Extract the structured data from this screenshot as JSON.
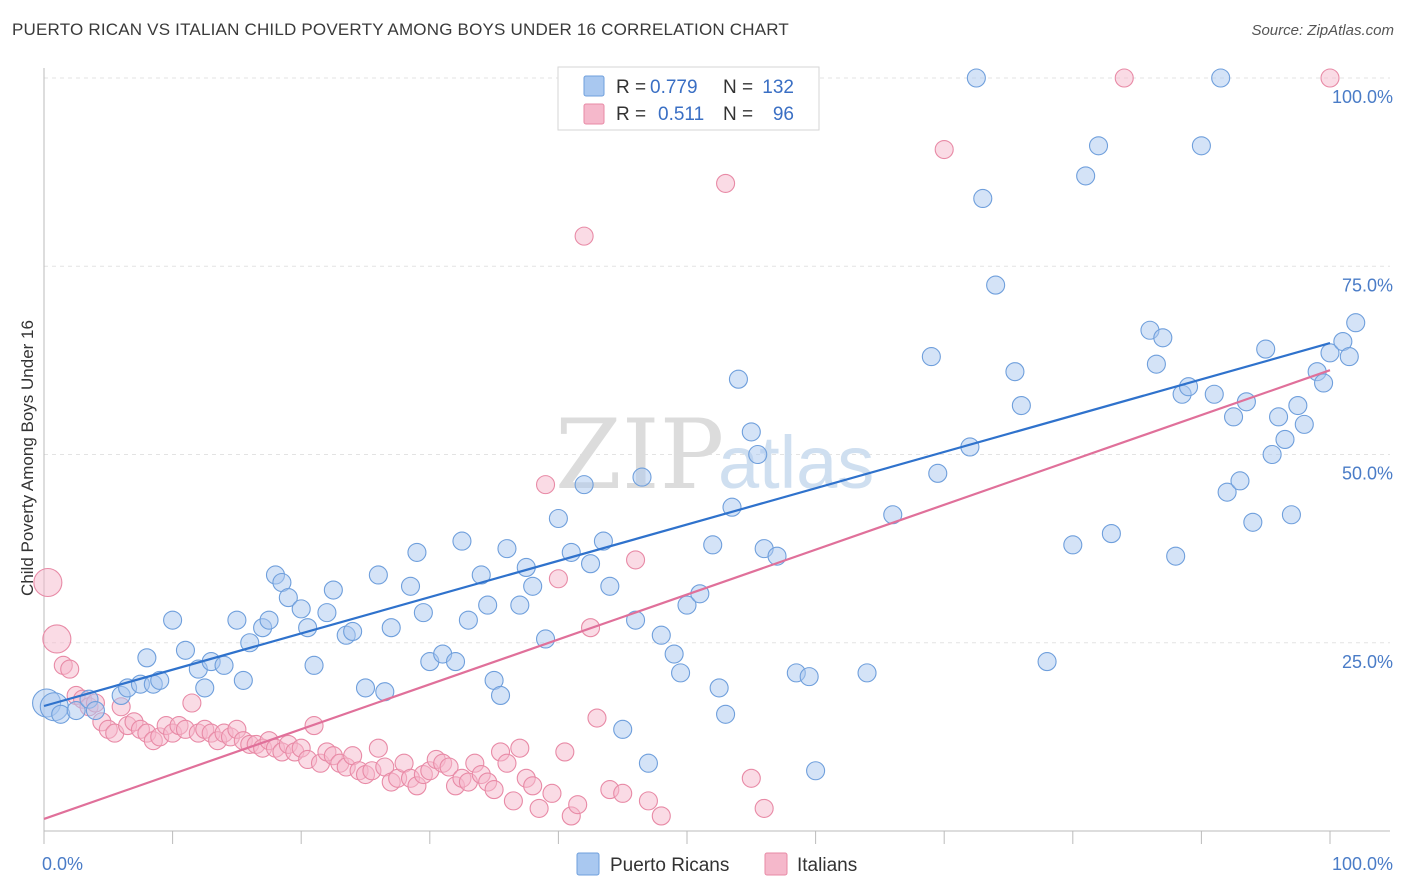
{
  "title": "PUERTO RICAN VS ITALIAN CHILD POVERTY AMONG BOYS UNDER 16 CORRELATION CHART",
  "source": "Source: ZipAtlas.com",
  "watermark": {
    "zip": "ZIP",
    "atlas": "atlas"
  },
  "legend_box": {
    "rows": [
      {
        "r_label": "R =",
        "r_value": "0.779",
        "n_label": "N =",
        "n_value": "132",
        "color": "#a9c8f0"
      },
      {
        "r_label": "R =",
        "r_value": "0.511",
        "n_label": "N =",
        "n_value": "96",
        "color": "#f5b8cb"
      }
    ]
  },
  "bottom_legend": [
    "Puerto Ricans",
    "Italians"
  ],
  "chart_data": {
    "type": "scatter",
    "title": "PUERTO RICAN VS ITALIAN CHILD POVERTY AMONG BOYS UNDER 16 CORRELATION CHART",
    "xlabel": "",
    "ylabel": "Child Poverty Among Boys Under 16",
    "xlim": [
      0,
      100
    ],
    "ylim": [
      0,
      100
    ],
    "x_tick_labels": [
      "0.0%",
      "100.0%"
    ],
    "y_tick_labels": [
      "25.0%",
      "50.0%",
      "75.0%",
      "100.0%"
    ],
    "y_ticks": [
      25,
      50,
      75,
      100
    ],
    "grid": true,
    "legend": "top-center",
    "series": [
      {
        "name": "Puerto Ricans",
        "color": "#a9c8f0",
        "edge": "#6f9fdc",
        "line_color": "#2f72cc",
        "trend": [
          [
            0,
            16.6
          ],
          [
            100,
            64.8
          ]
        ],
        "points": [
          [
            0.2,
            17
          ],
          [
            0.8,
            16.5
          ],
          [
            1.3,
            15.5
          ],
          [
            2.5,
            16
          ],
          [
            3.5,
            17.5
          ],
          [
            4,
            16
          ],
          [
            6,
            18
          ],
          [
            6.5,
            19
          ],
          [
            7.5,
            19.5
          ],
          [
            8,
            23
          ],
          [
            8.5,
            19.5
          ],
          [
            9,
            20
          ],
          [
            10,
            28
          ],
          [
            11,
            24
          ],
          [
            12,
            21.5
          ],
          [
            12.5,
            19
          ],
          [
            13,
            22.5
          ],
          [
            14,
            22
          ],
          [
            15,
            28
          ],
          [
            15.5,
            20
          ],
          [
            16,
            25
          ],
          [
            17,
            27
          ],
          [
            17.5,
            28
          ],
          [
            18,
            34
          ],
          [
            18.5,
            33
          ],
          [
            19,
            31
          ],
          [
            20,
            29.5
          ],
          [
            20.5,
            27
          ],
          [
            21,
            22
          ],
          [
            22,
            29
          ],
          [
            22.5,
            32
          ],
          [
            23.5,
            26
          ],
          [
            24,
            26.5
          ],
          [
            25,
            19
          ],
          [
            26,
            34
          ],
          [
            26.5,
            18.5
          ],
          [
            27,
            27
          ],
          [
            28.5,
            32.5
          ],
          [
            29,
            37
          ],
          [
            29.5,
            29
          ],
          [
            30,
            22.5
          ],
          [
            31,
            23.5
          ],
          [
            32,
            22.5
          ],
          [
            32.5,
            38.5
          ],
          [
            33,
            28
          ],
          [
            34,
            34
          ],
          [
            34.5,
            30
          ],
          [
            35,
            20
          ],
          [
            35.5,
            18
          ],
          [
            36,
            37.5
          ],
          [
            37,
            30
          ],
          [
            37.5,
            35
          ],
          [
            38,
            32.5
          ],
          [
            39,
            25.5
          ],
          [
            40,
            41.5
          ],
          [
            41,
            37
          ],
          [
            42,
            46
          ],
          [
            42.5,
            35.5
          ],
          [
            43.5,
            38.5
          ],
          [
            44,
            32.5
          ],
          [
            45,
            13.5
          ],
          [
            46,
            28
          ],
          [
            46.5,
            47
          ],
          [
            47,
            9
          ],
          [
            48,
            26
          ],
          [
            49,
            23.5
          ],
          [
            49.5,
            21
          ],
          [
            50,
            30
          ],
          [
            51,
            31.5
          ],
          [
            52,
            38
          ],
          [
            52.5,
            19
          ],
          [
            53,
            15.5
          ],
          [
            53.5,
            43
          ],
          [
            54,
            60
          ],
          [
            55,
            53
          ],
          [
            55.5,
            50
          ],
          [
            56,
            37.5
          ],
          [
            57,
            36.5
          ],
          [
            58.5,
            21
          ],
          [
            59.5,
            20.5
          ],
          [
            60,
            8
          ],
          [
            64,
            21
          ],
          [
            66,
            42
          ],
          [
            69,
            63
          ],
          [
            69.5,
            47.5
          ],
          [
            72,
            51
          ],
          [
            72.5,
            100
          ],
          [
            73,
            84
          ],
          [
            74,
            72.5
          ],
          [
            75.5,
            61
          ],
          [
            76,
            56.5
          ],
          [
            78,
            22.5
          ],
          [
            80,
            38
          ],
          [
            81,
            87
          ],
          [
            82,
            91
          ],
          [
            83,
            39.5
          ],
          [
            86,
            66.5
          ],
          [
            86.5,
            62
          ],
          [
            87,
            65.5
          ],
          [
            88,
            36.5
          ],
          [
            88.5,
            58
          ],
          [
            89,
            59
          ],
          [
            90,
            91
          ],
          [
            91,
            58
          ],
          [
            91.5,
            100
          ],
          [
            92,
            45
          ],
          [
            92.5,
            55
          ],
          [
            93,
            46.5
          ],
          [
            93.5,
            57
          ],
          [
            94,
            41
          ],
          [
            95,
            64
          ],
          [
            95.5,
            50
          ],
          [
            96,
            55
          ],
          [
            96.5,
            52
          ],
          [
            97,
            42
          ],
          [
            97.5,
            56.5
          ],
          [
            98,
            54
          ],
          [
            99,
            61
          ],
          [
            99.5,
            59.5
          ],
          [
            100,
            63.5
          ],
          [
            101,
            65
          ],
          [
            101.5,
            63
          ],
          [
            102,
            67.5
          ]
        ]
      },
      {
        "name": "Italians",
        "color": "#f5b8cb",
        "edge": "#e88aa6",
        "line_color": "#e0709a",
        "trend": [
          [
            0,
            1.6
          ],
          [
            100,
            61.2
          ]
        ],
        "points": [
          [
            0.3,
            33
          ],
          [
            1,
            25.5
          ],
          [
            1.5,
            22
          ],
          [
            2,
            21.5
          ],
          [
            2.5,
            18
          ],
          [
            3,
            17.5
          ],
          [
            3.5,
            16.5
          ],
          [
            4,
            17
          ],
          [
            4.5,
            14.5
          ],
          [
            5,
            13.5
          ],
          [
            5.5,
            13
          ],
          [
            6,
            16.5
          ],
          [
            6.5,
            14
          ],
          [
            7,
            14.5
          ],
          [
            7.5,
            13.5
          ],
          [
            8,
            13
          ],
          [
            8.5,
            12
          ],
          [
            9,
            12.5
          ],
          [
            9.5,
            14
          ],
          [
            10,
            13
          ],
          [
            10.5,
            14
          ],
          [
            11,
            13.5
          ],
          [
            11.5,
            17
          ],
          [
            12,
            13
          ],
          [
            12.5,
            13.5
          ],
          [
            13,
            13
          ],
          [
            13.5,
            12
          ],
          [
            14,
            13
          ],
          [
            14.5,
            12.5
          ],
          [
            15,
            13.5
          ],
          [
            15.5,
            12
          ],
          [
            16,
            11.5
          ],
          [
            16.5,
            11.5
          ],
          [
            17,
            11
          ],
          [
            17.5,
            12
          ],
          [
            18,
            11
          ],
          [
            18.5,
            10.5
          ],
          [
            19,
            11.5
          ],
          [
            19.5,
            10.5
          ],
          [
            20,
            11
          ],
          [
            20.5,
            9.5
          ],
          [
            21,
            14
          ],
          [
            21.5,
            9
          ],
          [
            22,
            10.5
          ],
          [
            22.5,
            10
          ],
          [
            23,
            9
          ],
          [
            23.5,
            8.5
          ],
          [
            24,
            10
          ],
          [
            24.5,
            8
          ],
          [
            25,
            7.5
          ],
          [
            25.5,
            8
          ],
          [
            26,
            11
          ],
          [
            26.5,
            8.5
          ],
          [
            27,
            6.5
          ],
          [
            27.5,
            7
          ],
          [
            28,
            9
          ],
          [
            28.5,
            7
          ],
          [
            29,
            6
          ],
          [
            29.5,
            7.5
          ],
          [
            30,
            8
          ],
          [
            30.5,
            9.5
          ],
          [
            31,
            9
          ],
          [
            31.5,
            8.5
          ],
          [
            32,
            6
          ],
          [
            32.5,
            7
          ],
          [
            33,
            6.5
          ],
          [
            33.5,
            9
          ],
          [
            34,
            7.5
          ],
          [
            34.5,
            6.5
          ],
          [
            35,
            5.5
          ],
          [
            35.5,
            10.5
          ],
          [
            36,
            9
          ],
          [
            36.5,
            4
          ],
          [
            37,
            11
          ],
          [
            37.5,
            7
          ],
          [
            38,
            6
          ],
          [
            38.5,
            3
          ],
          [
            39,
            46
          ],
          [
            39.5,
            5
          ],
          [
            40,
            33.5
          ],
          [
            40.5,
            10.5
          ],
          [
            41,
            2
          ],
          [
            41.5,
            3.5
          ],
          [
            42,
            79
          ],
          [
            42.5,
            27
          ],
          [
            43,
            15
          ],
          [
            44,
            5.5
          ],
          [
            45,
            5
          ],
          [
            46,
            36
          ],
          [
            47,
            4
          ],
          [
            48,
            2
          ],
          [
            53,
            86
          ],
          [
            55,
            7
          ],
          [
            56,
            3
          ],
          [
            70,
            90.5
          ],
          [
            84,
            100
          ],
          [
            100,
            100
          ]
        ]
      }
    ]
  }
}
